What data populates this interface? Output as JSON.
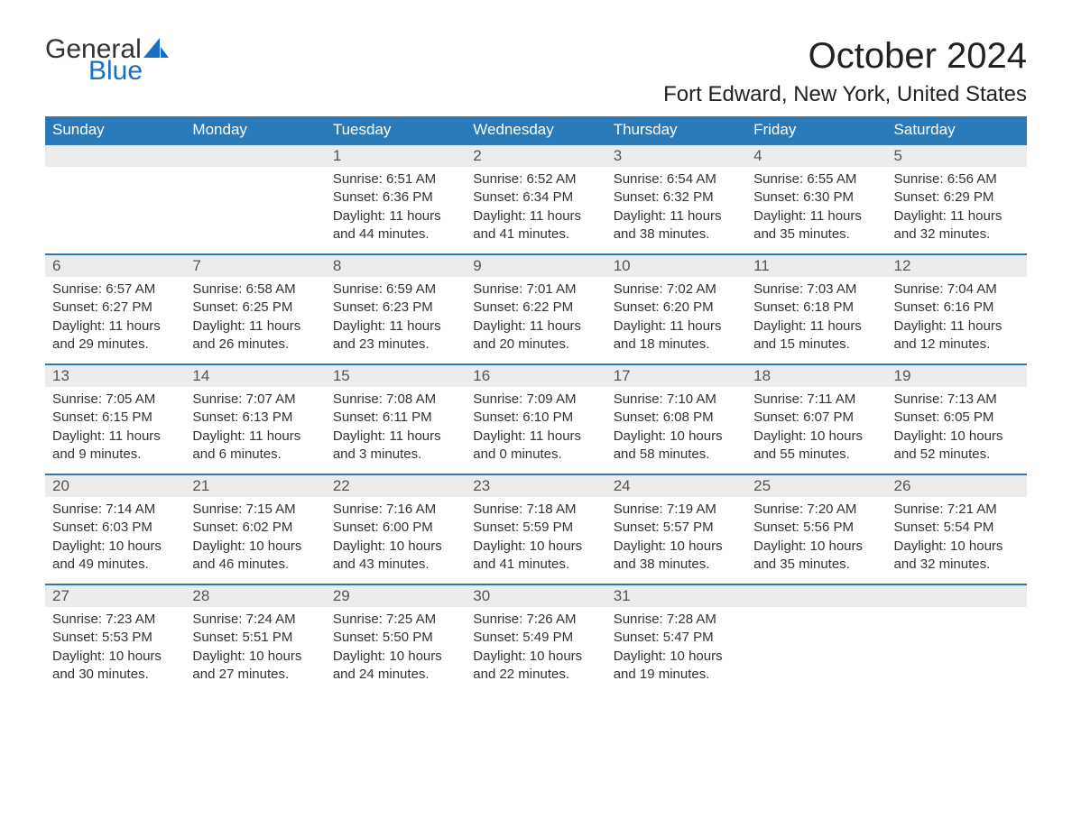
{
  "brand": {
    "word1": "General",
    "word2": "Blue",
    "accent_color": "#1b6ec2"
  },
  "title": "October 2024",
  "location": "Fort Edward, New York, United States",
  "colors": {
    "header_bg": "#2a7ab9",
    "header_text": "#ffffff",
    "daynum_bg": "#ececec",
    "row_border": "#2a7ab9",
    "body_text": "#333333",
    "page_bg": "#ffffff"
  },
  "typography": {
    "title_fontsize": 40,
    "location_fontsize": 24,
    "dayhead_fontsize": 17,
    "body_fontsize": 15
  },
  "calendar": {
    "type": "table",
    "columns": [
      "Sunday",
      "Monday",
      "Tuesday",
      "Wednesday",
      "Thursday",
      "Friday",
      "Saturday"
    ],
    "leading_blanks": 2,
    "days": [
      {
        "n": 1,
        "sunrise": "6:51 AM",
        "sunset": "6:36 PM",
        "daylight": "11 hours and 44 minutes."
      },
      {
        "n": 2,
        "sunrise": "6:52 AM",
        "sunset": "6:34 PM",
        "daylight": "11 hours and 41 minutes."
      },
      {
        "n": 3,
        "sunrise": "6:54 AM",
        "sunset": "6:32 PM",
        "daylight": "11 hours and 38 minutes."
      },
      {
        "n": 4,
        "sunrise": "6:55 AM",
        "sunset": "6:30 PM",
        "daylight": "11 hours and 35 minutes."
      },
      {
        "n": 5,
        "sunrise": "6:56 AM",
        "sunset": "6:29 PM",
        "daylight": "11 hours and 32 minutes."
      },
      {
        "n": 6,
        "sunrise": "6:57 AM",
        "sunset": "6:27 PM",
        "daylight": "11 hours and 29 minutes."
      },
      {
        "n": 7,
        "sunrise": "6:58 AM",
        "sunset": "6:25 PM",
        "daylight": "11 hours and 26 minutes."
      },
      {
        "n": 8,
        "sunrise": "6:59 AM",
        "sunset": "6:23 PM",
        "daylight": "11 hours and 23 minutes."
      },
      {
        "n": 9,
        "sunrise": "7:01 AM",
        "sunset": "6:22 PM",
        "daylight": "11 hours and 20 minutes."
      },
      {
        "n": 10,
        "sunrise": "7:02 AM",
        "sunset": "6:20 PM",
        "daylight": "11 hours and 18 minutes."
      },
      {
        "n": 11,
        "sunrise": "7:03 AM",
        "sunset": "6:18 PM",
        "daylight": "11 hours and 15 minutes."
      },
      {
        "n": 12,
        "sunrise": "7:04 AM",
        "sunset": "6:16 PM",
        "daylight": "11 hours and 12 minutes."
      },
      {
        "n": 13,
        "sunrise": "7:05 AM",
        "sunset": "6:15 PM",
        "daylight": "11 hours and 9 minutes."
      },
      {
        "n": 14,
        "sunrise": "7:07 AM",
        "sunset": "6:13 PM",
        "daylight": "11 hours and 6 minutes."
      },
      {
        "n": 15,
        "sunrise": "7:08 AM",
        "sunset": "6:11 PM",
        "daylight": "11 hours and 3 minutes."
      },
      {
        "n": 16,
        "sunrise": "7:09 AM",
        "sunset": "6:10 PM",
        "daylight": "11 hours and 0 minutes."
      },
      {
        "n": 17,
        "sunrise": "7:10 AM",
        "sunset": "6:08 PM",
        "daylight": "10 hours and 58 minutes."
      },
      {
        "n": 18,
        "sunrise": "7:11 AM",
        "sunset": "6:07 PM",
        "daylight": "10 hours and 55 minutes."
      },
      {
        "n": 19,
        "sunrise": "7:13 AM",
        "sunset": "6:05 PM",
        "daylight": "10 hours and 52 minutes."
      },
      {
        "n": 20,
        "sunrise": "7:14 AM",
        "sunset": "6:03 PM",
        "daylight": "10 hours and 49 minutes."
      },
      {
        "n": 21,
        "sunrise": "7:15 AM",
        "sunset": "6:02 PM",
        "daylight": "10 hours and 46 minutes."
      },
      {
        "n": 22,
        "sunrise": "7:16 AM",
        "sunset": "6:00 PM",
        "daylight": "10 hours and 43 minutes."
      },
      {
        "n": 23,
        "sunrise": "7:18 AM",
        "sunset": "5:59 PM",
        "daylight": "10 hours and 41 minutes."
      },
      {
        "n": 24,
        "sunrise": "7:19 AM",
        "sunset": "5:57 PM",
        "daylight": "10 hours and 38 minutes."
      },
      {
        "n": 25,
        "sunrise": "7:20 AM",
        "sunset": "5:56 PM",
        "daylight": "10 hours and 35 minutes."
      },
      {
        "n": 26,
        "sunrise": "7:21 AM",
        "sunset": "5:54 PM",
        "daylight": "10 hours and 32 minutes."
      },
      {
        "n": 27,
        "sunrise": "7:23 AM",
        "sunset": "5:53 PM",
        "daylight": "10 hours and 30 minutes."
      },
      {
        "n": 28,
        "sunrise": "7:24 AM",
        "sunset": "5:51 PM",
        "daylight": "10 hours and 27 minutes."
      },
      {
        "n": 29,
        "sunrise": "7:25 AM",
        "sunset": "5:50 PM",
        "daylight": "10 hours and 24 minutes."
      },
      {
        "n": 30,
        "sunrise": "7:26 AM",
        "sunset": "5:49 PM",
        "daylight": "10 hours and 22 minutes."
      },
      {
        "n": 31,
        "sunrise": "7:28 AM",
        "sunset": "5:47 PM",
        "daylight": "10 hours and 19 minutes."
      }
    ],
    "labels": {
      "sunrise": "Sunrise: ",
      "sunset": "Sunset: ",
      "daylight": "Daylight: "
    }
  }
}
